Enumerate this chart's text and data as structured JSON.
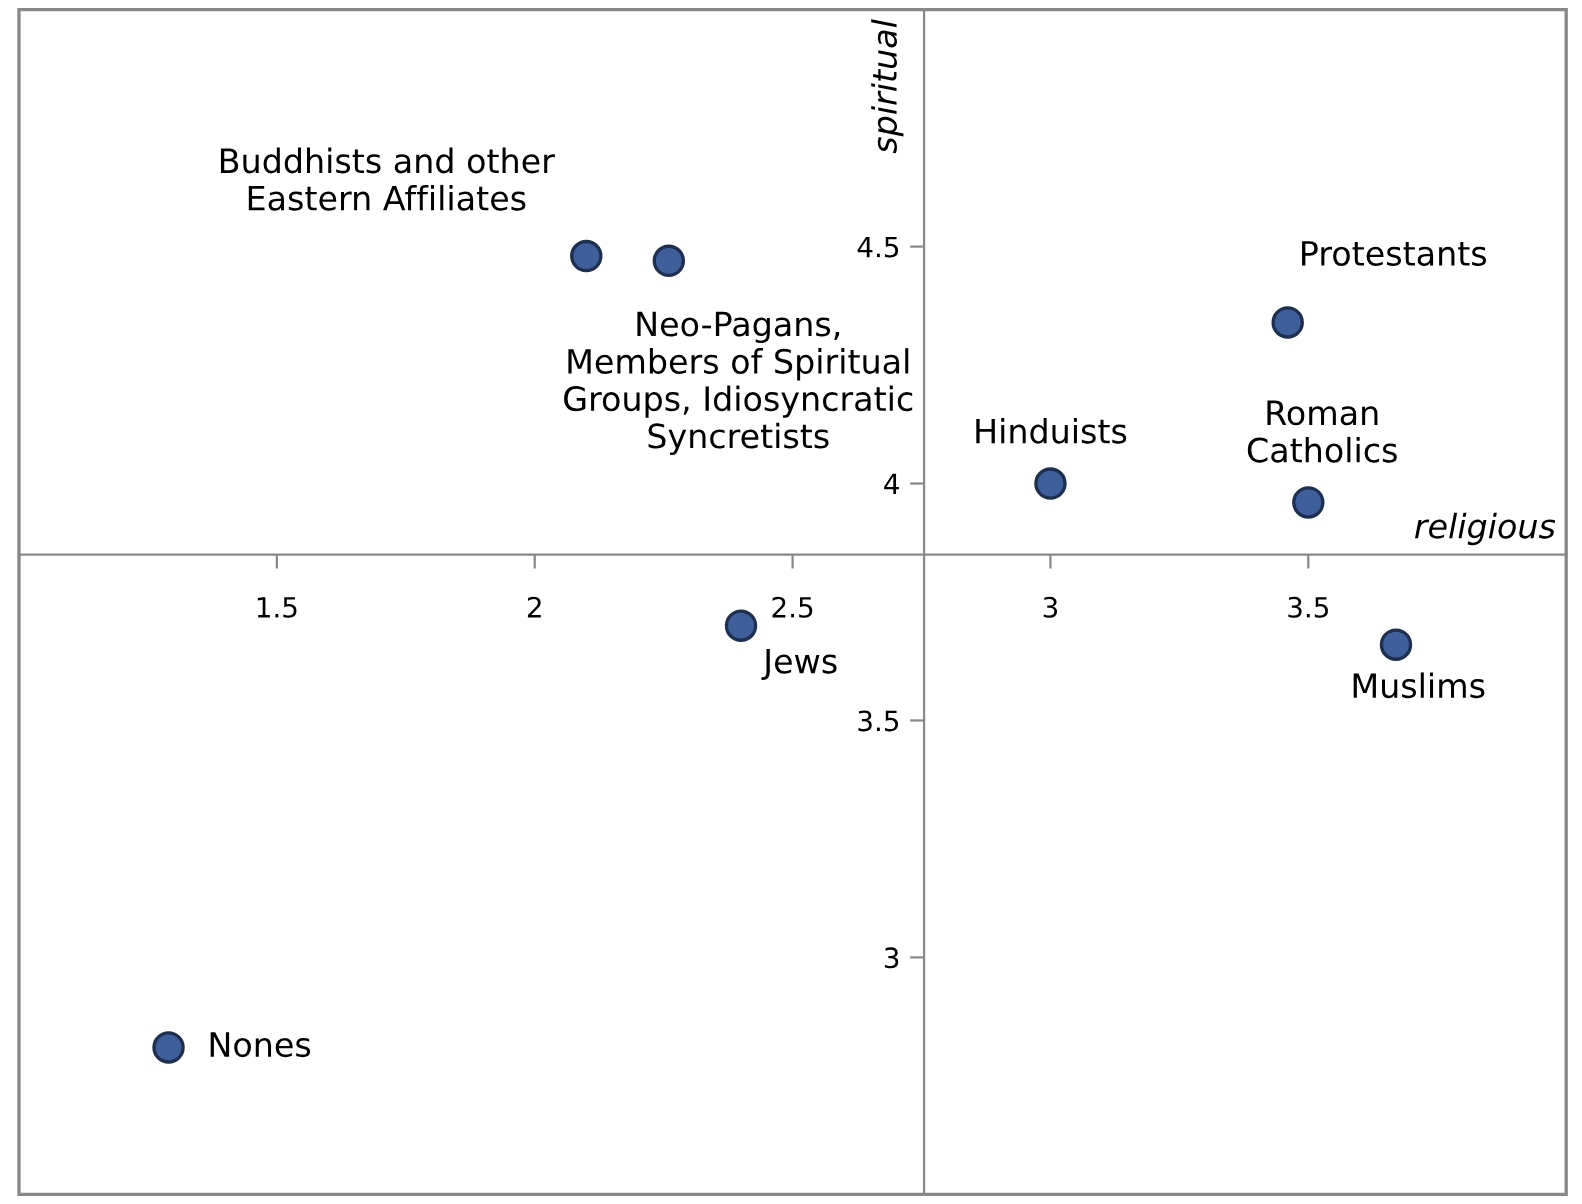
{
  "chart_data": {
    "type": "scatter",
    "xlabel": "religious",
    "ylabel": "spiritual",
    "x": [
      2.1,
      2.26,
      3.46,
      3.0,
      3.5,
      2.4,
      3.67,
      1.29
    ],
    "values": [
      4.48,
      4.47,
      4.34,
      4.0,
      3.96,
      3.7,
      3.66,
      2.81
    ],
    "color": "#3f5f9a",
    "marker": "circle",
    "grid": false,
    "legend": false,
    "xlim": [
      1.0,
      4.0
    ],
    "ylim": [
      2.5,
      5.0
    ],
    "xticks": [
      1.5,
      2,
      2.5,
      3,
      3.5
    ],
    "yticks": [
      3,
      3.5,
      4,
      4.5
    ],
    "annotations": [
      {
        "text": "Buddhists and other\nEastern Affiliates",
        "x": 2.1,
        "y": 4.48
      },
      {
        "text": "Neo-Pagans,\nMembers of Spiritual\nGroups, Idiosyncratic\nSyncretists",
        "x": 2.26,
        "y": 4.47
      },
      {
        "text": "Protestants",
        "x": 3.46,
        "y": 4.34
      },
      {
        "text": "Hinduists",
        "x": 3.0,
        "y": 4.0
      },
      {
        "text": "Roman\nCatholics",
        "x": 3.5,
        "y": 3.96
      },
      {
        "text": "Jews",
        "x": 2.4,
        "y": 3.7
      },
      {
        "text": "Muslims",
        "x": 3.67,
        "y": 3.66
      },
      {
        "text": "Nones",
        "x": 1.29,
        "y": 2.81
      }
    ]
  }
}
